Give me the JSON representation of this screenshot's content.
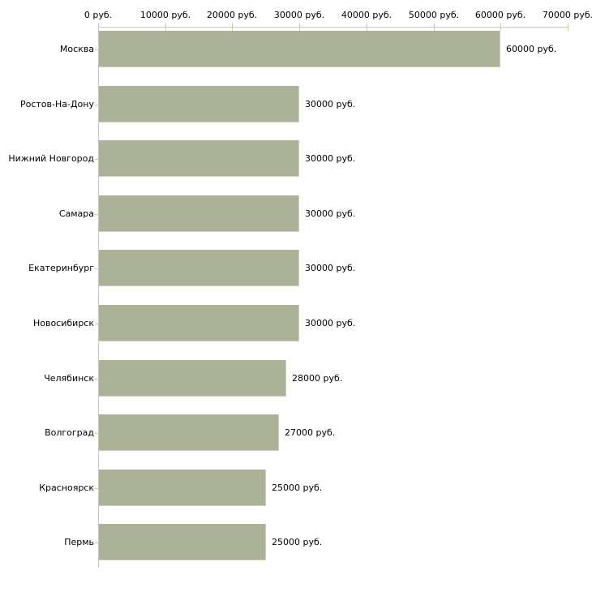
{
  "chart_data": {
    "type": "bar",
    "orientation": "horizontal",
    "title": "",
    "xlabel": "",
    "ylabel": "",
    "xlim": [
      0,
      70000
    ],
    "grid": false,
    "legend_position": "none",
    "unit_suffix": " руб.",
    "categories": [
      "Москва",
      "Ростов-На-Дону",
      "Нижний Новгород",
      "Самара",
      "Екатеринбург",
      "Новосибирск",
      "Челябинск",
      "Волгоград",
      "Красноярск",
      "Пермь"
    ],
    "values": [
      60000,
      30000,
      30000,
      30000,
      30000,
      30000,
      28000,
      27000,
      25000,
      25000
    ],
    "value_labels": [
      "60000 руб.",
      "30000 руб.",
      "30000 руб.",
      "30000 руб.",
      "30000 руб.",
      "30000 руб.",
      "28000 руб.",
      "27000 руб.",
      "25000 руб.",
      "25000 руб."
    ],
    "x_ticks": [
      {
        "value": 0,
        "label": "0 руб."
      },
      {
        "value": 10000,
        "label": "10000 руб."
      },
      {
        "value": 20000,
        "label": "20000 руб."
      },
      {
        "value": 30000,
        "label": "30000 руб."
      },
      {
        "value": 40000,
        "label": "40000 руб."
      },
      {
        "value": 50000,
        "label": "50000 руб."
      },
      {
        "value": 60000,
        "label": "60000 руб."
      },
      {
        "value": 70000,
        "label": "70000 руб."
      }
    ],
    "colors": {
      "bar_fill": "#abb297",
      "axis_line": "#c8c8c8",
      "tick_mark": "#cccc99",
      "text": "#000000",
      "background": "#ffffff"
    }
  }
}
